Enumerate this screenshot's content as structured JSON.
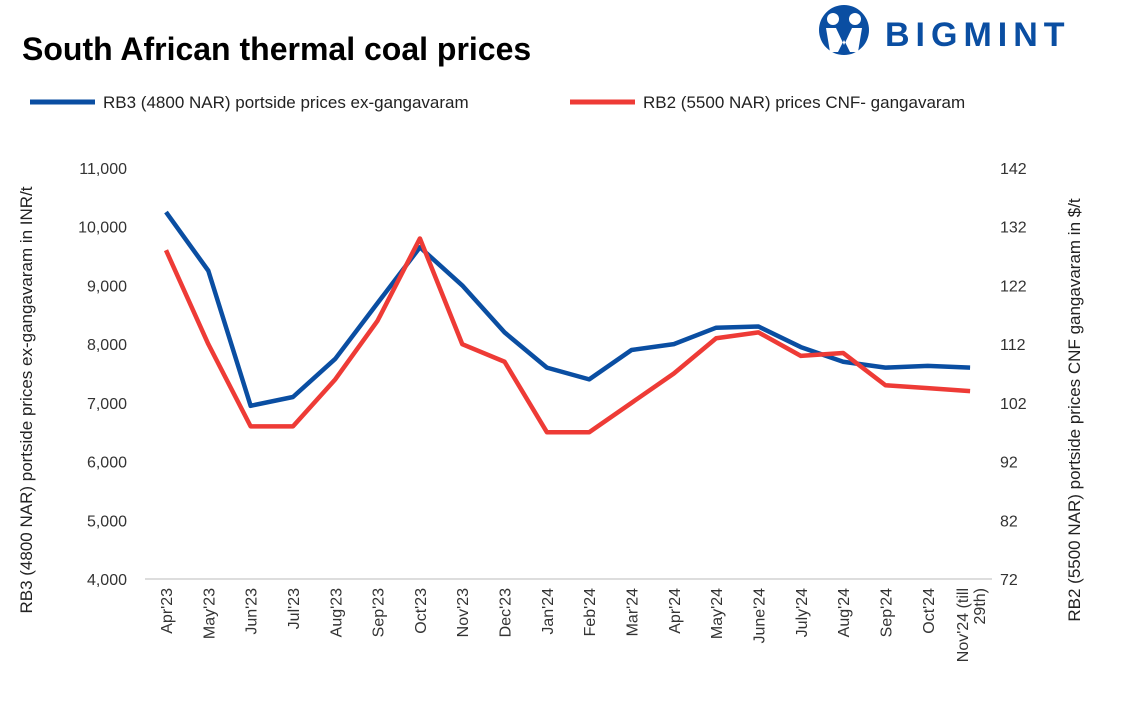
{
  "logo_text": "BIGMINT",
  "chart_data": {
    "type": "line",
    "title": "South African thermal coal prices",
    "categories": [
      "Apr'23",
      "May'23",
      "Jun'23",
      "Jul'23",
      "Aug'23",
      "Sep'23",
      "Oct'23",
      "Nov'23",
      "Dec'23",
      "Jan'24",
      "Feb'24",
      "Mar'24",
      "Apr'24",
      "May'24",
      "June'24",
      "July'24",
      "Aug'24",
      "Sep'24",
      "Oct'24",
      "Nov'24 (till|29th)"
    ],
    "ylabel_left": "RB3 (4800 NAR) portside prices ex-gangavaram  in INR/t",
    "ylabel_right": "RB2 (5500 NAR) portside prices CNF  gangavaram  in $/t",
    "ylim_left": [
      4000,
      11000
    ],
    "ylim_right": [
      72,
      142
    ],
    "yticks_left": [
      "4,000",
      "5,000",
      "6,000",
      "7,000",
      "8,000",
      "9,000",
      "10,000",
      "11,000"
    ],
    "yticks_right": [
      "72",
      "82",
      "92",
      "102",
      "112",
      "122",
      "132",
      "142"
    ],
    "grid": false,
    "legend_position": "top",
    "series": [
      {
        "name": "RB3 (4800 NAR) portside prices ex-gangavaram",
        "axis": "left",
        "color": "#0a4ea2",
        "values": [
          10250,
          9250,
          6950,
          7100,
          7750,
          8700,
          9650,
          9000,
          8200,
          7600,
          7400,
          7900,
          8000,
          8280,
          8300,
          7950,
          7700,
          7600,
          7630,
          7600
        ]
      },
      {
        "name": "RB2 (5500 NAR) prices CNF- gangavaram",
        "axis": "right",
        "color": "#ee3b36",
        "values": [
          128,
          112,
          98,
          98,
          106,
          116,
          130,
          112,
          109,
          97,
          97,
          102,
          107,
          113,
          114,
          110,
          110.5,
          105,
          104.5,
          104
        ]
      }
    ]
  }
}
